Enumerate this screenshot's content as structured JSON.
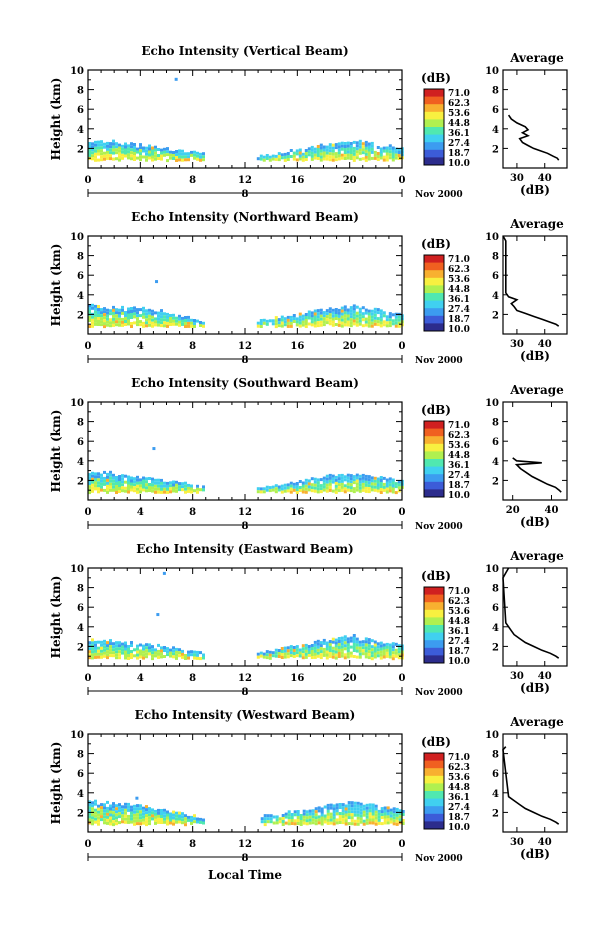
{
  "figure": {
    "xlabel": "Local Time",
    "day_label": "8",
    "month_label": "Nov 2000",
    "ylabel": "Height (km)",
    "colorbar_title": "(dB)",
    "colorbar_ticks": [
      "71.0",
      "62.3",
      "53.6",
      "44.8",
      "36.1",
      "27.4",
      "18.7",
      "10.0"
    ],
    "profile_title": "Average",
    "profile_xlabel": "(dB)",
    "x_ticks": [
      "0",
      "4",
      "8",
      "12",
      "16",
      "20",
      "0"
    ],
    "y_ticks": [
      "2",
      "4",
      "6",
      "8",
      "10"
    ],
    "profile_y_ticks": [
      "2",
      "4",
      "6",
      "8",
      "10"
    ]
  },
  "colors": {
    "colormap": [
      "#2c2c8c",
      "#3c5cd8",
      "#3c9cf0",
      "#40d0f0",
      "#50e8b0",
      "#b0f050",
      "#f8f040",
      "#f8b030",
      "#f06020",
      "#d02020"
    ],
    "axis": "#000000",
    "profile_line": "#000000"
  },
  "chart_data": [
    {
      "type": "heatmap",
      "title": "Echo Intensity (Vertical Beam)",
      "xlim": [
        0,
        24
      ],
      "ylim": [
        0,
        10
      ],
      "x_unit": "hours local time",
      "y_unit": "km",
      "value_range": [
        10.0,
        71.0
      ],
      "echo_layers": [
        {
          "x_start": 0,
          "x_end": 8.8,
          "top_km": [
            2.6,
            2.8,
            2.5,
            2.3,
            2.0,
            1.7,
            1.5
          ],
          "typical_dB": [
            30,
            45
          ]
        },
        {
          "x_start": 12.9,
          "x_end": 24,
          "top_km": [
            1.2,
            1.6,
            2.1,
            2.5,
            2.8,
            2.4,
            2.1
          ],
          "typical_dB": [
            30,
            45
          ]
        }
      ],
      "isolated_echoes": [
        {
          "x": 6.7,
          "y": 9.1
        }
      ],
      "profile": {
        "title": "Average",
        "xlabel": "(dB)",
        "xlim": [
          25,
          48
        ],
        "x_ticks": [
          30,
          40
        ],
        "height_km": [
          0.8,
          1.0,
          1.2,
          1.5,
          1.8,
          2.0,
          2.3,
          2.6,
          3.0,
          3.3,
          3.6,
          3.9,
          4.2,
          4.6,
          5.0,
          5.4
        ],
        "dB": [
          45,
          44.5,
          43,
          41,
          38,
          36,
          34,
          32,
          31,
          34,
          32,
          34,
          33,
          30,
          28,
          27
        ]
      }
    },
    {
      "type": "heatmap",
      "title": "Echo Intensity (Northward Beam)",
      "xlim": [
        0,
        24
      ],
      "ylim": [
        0,
        10
      ],
      "x_unit": "hours local time",
      "y_unit": "km",
      "value_range": [
        10.0,
        71.0
      ],
      "echo_layers": [
        {
          "x_start": 0,
          "x_end": 8.8,
          "top_km": [
            3.0,
            2.7,
            2.7,
            2.6,
            2.3,
            1.8,
            1.4
          ],
          "typical_dB": [
            30,
            45
          ]
        },
        {
          "x_start": 12.9,
          "x_end": 24,
          "top_km": [
            1.4,
            1.8,
            2.2,
            2.6,
            2.9,
            2.5,
            2.1
          ],
          "typical_dB": [
            30,
            45
          ]
        }
      ],
      "isolated_echoes": [
        {
          "x": 5.2,
          "y": 5.4
        }
      ],
      "profile": {
        "title": "Average",
        "xlabel": "(dB)",
        "xlim": [
          25,
          48
        ],
        "x_ticks": [
          30,
          40
        ],
        "height_km": [
          0.8,
          1.0,
          1.2,
          1.5,
          1.8,
          2.1,
          2.4,
          2.8,
          3.1,
          3.5,
          3.8,
          4.2,
          9.5,
          10.0
        ],
        "dB": [
          45,
          44,
          42,
          39,
          36,
          33,
          30,
          29,
          28,
          30,
          27,
          26,
          26,
          25
        ]
      }
    },
    {
      "type": "heatmap",
      "title": "Echo Intensity (Southward Beam)",
      "xlim": [
        0,
        24
      ],
      "ylim": [
        0,
        10
      ],
      "x_unit": "hours local time",
      "y_unit": "km",
      "value_range": [
        10.0,
        71.0
      ],
      "echo_layers": [
        {
          "x_start": 0,
          "x_end": 8.8,
          "top_km": [
            2.8,
            2.9,
            2.5,
            2.3,
            2.0,
            1.7,
            1.4
          ],
          "typical_dB": [
            30,
            45
          ]
        },
        {
          "x_start": 12.9,
          "x_end": 24,
          "top_km": [
            1.3,
            1.7,
            2.1,
            2.5,
            2.7,
            2.4,
            2.1
          ],
          "typical_dB": [
            30,
            45
          ]
        }
      ],
      "isolated_echoes": [
        {
          "x": 5.0,
          "y": 5.3
        }
      ],
      "profile": {
        "title": "Average",
        "xlabel": "(dB)",
        "xlim": [
          15,
          48
        ],
        "x_ticks": [
          20,
          40
        ],
        "height_km": [
          0.8,
          1.0,
          1.3,
          1.6,
          2.0,
          2.4,
          2.8,
          3.2,
          3.6,
          3.8,
          4.0,
          4.3
        ],
        "dB": [
          45,
          44,
          42,
          38,
          34,
          30,
          27,
          24,
          22,
          35,
          22,
          20
        ]
      }
    },
    {
      "type": "heatmap",
      "title": "Echo Intensity (Eastward Beam)",
      "xlim": [
        0,
        24
      ],
      "ylim": [
        0,
        10
      ],
      "x_unit": "hours local time",
      "y_unit": "km",
      "value_range": [
        10.0,
        71.0
      ],
      "echo_layers": [
        {
          "x_start": 0,
          "x_end": 8.8,
          "top_km": [
            2.7,
            2.6,
            2.5,
            2.3,
            2.0,
            1.7,
            1.4
          ],
          "typical_dB": [
            30,
            45
          ]
        },
        {
          "x_start": 12.9,
          "x_end": 24,
          "top_km": [
            1.4,
            1.8,
            2.3,
            2.8,
            3.1,
            2.5,
            2.1
          ],
          "typical_dB": [
            30,
            45
          ]
        }
      ],
      "isolated_echoes": [
        {
          "x": 5.3,
          "y": 5.3
        },
        {
          "x": 5.8,
          "y": 9.5
        }
      ],
      "profile": {
        "title": "Average",
        "xlabel": "(dB)",
        "xlim": [
          25,
          48
        ],
        "x_ticks": [
          30,
          40
        ],
        "height_km": [
          0.8,
          1.0,
          1.3,
          1.6,
          2.0,
          2.4,
          2.8,
          3.2,
          3.6,
          4.0,
          4.4,
          9.0,
          9.5,
          10.0
        ],
        "dB": [
          45,
          44,
          42,
          39,
          36,
          33,
          31,
          29,
          28,
          27,
          26,
          25,
          26,
          27
        ]
      }
    },
    {
      "type": "heatmap",
      "title": "Echo Intensity (Westward Beam)",
      "xlim": [
        0,
        24
      ],
      "ylim": [
        0,
        10
      ],
      "x_unit": "hours local time",
      "y_unit": "km",
      "value_range": [
        10.0,
        71.0
      ],
      "echo_layers": [
        {
          "x_start": 0,
          "x_end": 8.8,
          "top_km": [
            3.2,
            3.0,
            2.8,
            2.6,
            2.2,
            1.8,
            1.5
          ],
          "typical_dB": [
            30,
            45
          ]
        },
        {
          "x_start": 13.2,
          "x_end": 24,
          "top_km": [
            1.6,
            2.0,
            2.4,
            2.8,
            3.1,
            2.6,
            2.2
          ],
          "typical_dB": [
            30,
            45
          ]
        }
      ],
      "isolated_echoes": [
        {
          "x": 3.7,
          "y": 3.5
        }
      ],
      "profile": {
        "title": "Average",
        "xlabel": "(dB)",
        "xlim": [
          25,
          48
        ],
        "x_ticks": [
          30,
          40
        ],
        "height_km": [
          0.8,
          1.0,
          1.3,
          1.6,
          2.0,
          2.4,
          2.8,
          3.2,
          3.6,
          8.4,
          8.7
        ],
        "dB": [
          45,
          44,
          42,
          39,
          36,
          33,
          31,
          29,
          27,
          25,
          26
        ]
      }
    }
  ]
}
